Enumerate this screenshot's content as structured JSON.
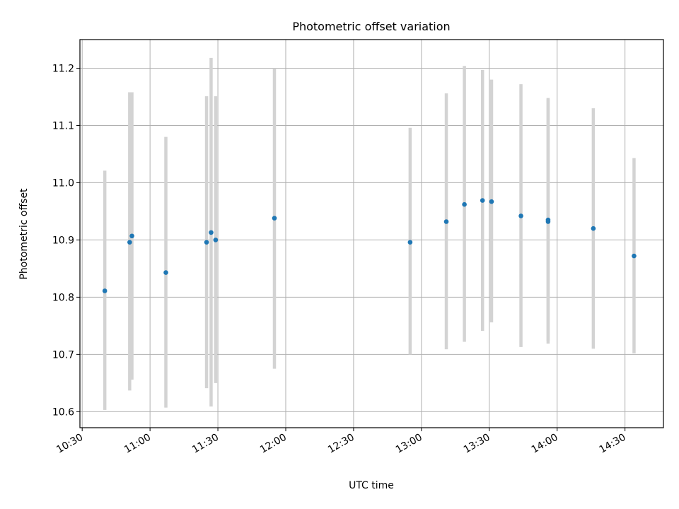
{
  "chart_data": {
    "type": "scatter",
    "title": "Photometric offset variation",
    "xlabel": "UTC time",
    "ylabel": "Photometric offset",
    "xlim": [
      "10:29",
      "14:47"
    ],
    "ylim": [
      10.572,
      11.25
    ],
    "x_ticks": [
      "10:30",
      "11:00",
      "11:30",
      "12:00",
      "12:30",
      "13:00",
      "13:30",
      "14:00",
      "14:30"
    ],
    "y_ticks": [
      "10.6",
      "10.7",
      "10.8",
      "10.9",
      "11.0",
      "11.1",
      "11.2"
    ],
    "grid": true,
    "colors": {
      "points": "#1f77b4",
      "error_bars": "#d3d3d3"
    },
    "points": [
      {
        "time": "10:40",
        "y": 10.811,
        "err_low": 10.603,
        "err_high": 11.021
      },
      {
        "time": "10:51",
        "y": 10.896,
        "err_low": 10.637,
        "err_high": 11.158
      },
      {
        "time": "10:52",
        "y": 10.907,
        "err_low": 10.656,
        "err_high": 11.158
      },
      {
        "time": "11:07",
        "y": 10.843,
        "err_low": 10.607,
        "err_high": 11.08
      },
      {
        "time": "11:25",
        "y": 10.896,
        "err_low": 10.641,
        "err_high": 11.151
      },
      {
        "time": "11:27",
        "y": 10.913,
        "err_low": 10.609,
        "err_high": 11.218
      },
      {
        "time": "11:29",
        "y": 10.9,
        "err_low": 10.65,
        "err_high": 11.151
      },
      {
        "time": "11:55",
        "y": 10.938,
        "err_low": 10.675,
        "err_high": 11.2
      },
      {
        "time": "12:55",
        "y": 10.896,
        "err_low": 10.7,
        "err_high": 11.096
      },
      {
        "time": "13:11",
        "y": 10.932,
        "err_low": 10.709,
        "err_high": 11.156
      },
      {
        "time": "13:19",
        "y": 10.962,
        "err_low": 10.722,
        "err_high": 11.204
      },
      {
        "time": "13:27",
        "y": 10.969,
        "err_low": 10.741,
        "err_high": 11.197
      },
      {
        "time": "13:31",
        "y": 10.967,
        "err_low": 10.756,
        "err_high": 11.18
      },
      {
        "time": "13:44",
        "y": 10.942,
        "err_low": 10.713,
        "err_high": 11.172
      },
      {
        "time": "13:56",
        "y": 10.935,
        "err_low": 10.724,
        "err_high": 11.146
      },
      {
        "time": "13:56",
        "y": 10.932,
        "err_low": 10.719,
        "err_high": 11.148
      },
      {
        "time": "14:16",
        "y": 10.92,
        "err_low": 10.71,
        "err_high": 11.13
      },
      {
        "time": "14:34",
        "y": 10.872,
        "err_low": 10.702,
        "err_high": 11.043
      }
    ]
  }
}
